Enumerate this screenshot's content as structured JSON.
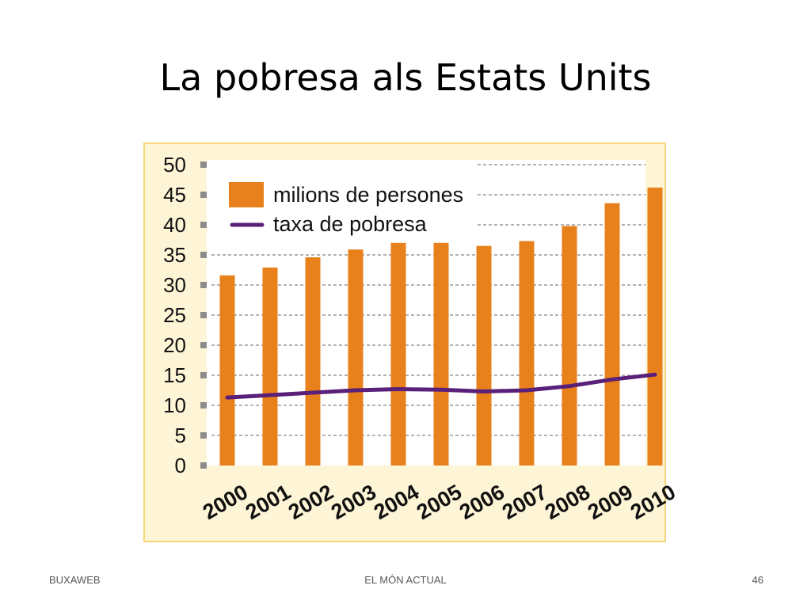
{
  "slide": {
    "title": "La pobresa als Estats Units"
  },
  "footer": {
    "left": "BUXAWEB",
    "center": "EL MÓN ACTUAL",
    "page_number": "46"
  },
  "colors": {
    "bar": "#e8801c",
    "line": "#5a1f78",
    "frame_bg": "#fdf5d6",
    "frame_border": "#f3d77a",
    "plot_bg": "#ffffff",
    "grid": "#9a9a9a",
    "tick_marker": "#8c8c8c"
  },
  "chart_data": {
    "type": "bar",
    "title": "",
    "xlabel": "",
    "ylabel": "",
    "categories": [
      "2000",
      "2001",
      "2002",
      "2003",
      "2004",
      "2005",
      "2006",
      "2007",
      "2008",
      "2009",
      "2010"
    ],
    "ylim": [
      0,
      50
    ],
    "yticks": [
      0,
      5,
      10,
      15,
      20,
      25,
      30,
      35,
      40,
      45,
      50
    ],
    "grid": true,
    "legend_position": "top-left",
    "series": [
      {
        "name": "milions de persones",
        "type": "bar",
        "values": [
          31.6,
          32.9,
          34.6,
          35.9,
          37.0,
          37.0,
          36.5,
          37.3,
          39.8,
          43.6,
          46.2
        ]
      },
      {
        "name": "taxa de pobresa",
        "type": "line",
        "values": [
          11.3,
          11.7,
          12.1,
          12.5,
          12.7,
          12.6,
          12.3,
          12.5,
          13.2,
          14.3,
          15.1
        ]
      }
    ]
  }
}
